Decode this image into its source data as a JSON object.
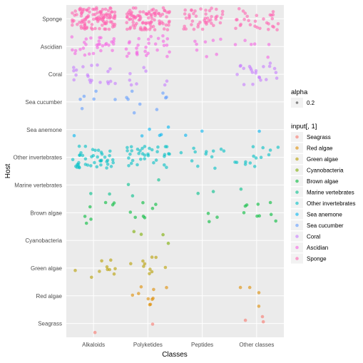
{
  "chart_data": {
    "type": "scatter",
    "subtype": "jitter",
    "xlabel": "Classes",
    "ylabel": "Host",
    "categories_x": [
      "Alkaloids",
      "Polyketides",
      "Peptides",
      "Other classes"
    ],
    "categories_y": [
      "Seagrass",
      "Red algae",
      "Green algae",
      "Cyanobacteria",
      "Brown algae",
      "Marine vertebrates",
      "Other invertebrates",
      "Sea anemone",
      "Sea cucumber",
      "Coral",
      "Ascidian",
      "Sponge"
    ],
    "grid": true,
    "legend_position": "right",
    "point_alpha": 0.6,
    "legend_alpha": {
      "title": "alpha",
      "entries": [
        "0.2"
      ]
    },
    "legend_color": {
      "title": "input[, 1]",
      "entries": [
        {
          "name": "Seagrass",
          "color": "#F8766D"
        },
        {
          "name": "Red algae",
          "color": "#DE8C00"
        },
        {
          "name": "Green algae",
          "color": "#B79F00"
        },
        {
          "name": "Cyanobacteria",
          "color": "#7CAE00"
        },
        {
          "name": "Brown algae",
          "color": "#00BA38"
        },
        {
          "name": "Marine vertebrates",
          "color": "#00C08B"
        },
        {
          "name": "Other invertebrates",
          "color": "#00BFC4"
        },
        {
          "name": "Sea anemone",
          "color": "#00B4F0"
        },
        {
          "name": "Sea cucumber",
          "color": "#619CFF"
        },
        {
          "name": "Coral",
          "color": "#C77CFF"
        },
        {
          "name": "Ascidian",
          "color": "#F564E3"
        },
        {
          "name": "Sponge",
          "color": "#FF64B0"
        }
      ]
    },
    "counts": {
      "Sponge": [
        110,
        95,
        45,
        30
      ],
      "Ascidian": [
        30,
        28,
        8,
        6
      ],
      "Coral": [
        20,
        8,
        0,
        22
      ],
      "Sea cucumber": [
        6,
        9,
        0,
        0
      ],
      "Sea anemone": [
        1,
        5,
        2,
        1
      ],
      "Other invertebrates": [
        42,
        35,
        12,
        14
      ],
      "Marine vertebrates": [
        2,
        3,
        2,
        1
      ],
      "Brown algae": [
        7,
        7,
        3,
        9
      ],
      "Cyanobacteria": [
        0,
        4,
        0,
        0
      ],
      "Green algae": [
        10,
        10,
        0,
        0
      ],
      "Red algae": [
        0,
        10,
        0,
        4
      ],
      "Seagrass": [
        1,
        1,
        0,
        3
      ]
    }
  }
}
